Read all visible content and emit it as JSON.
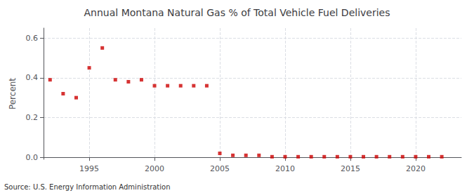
{
  "chart_data": {
    "type": "scatter",
    "title": "Annual Montana Natural Gas % of Total Vehicle Fuel Deliveries",
    "ylabel": "Percent",
    "source": "Source: U.S. Energy Information Administration",
    "x": [
      1992,
      1993,
      1994,
      1995,
      1996,
      1997,
      1998,
      1999,
      2000,
      2001,
      2002,
      2003,
      2004,
      2005,
      2006,
      2007,
      2008,
      2009,
      2010,
      2011,
      2012,
      2013,
      2014,
      2015,
      2016,
      2017,
      2018,
      2019,
      2020,
      2021,
      2022
    ],
    "values": [
      0.39,
      0.32,
      0.3,
      0.45,
      0.55,
      0.39,
      0.38,
      0.39,
      0.36,
      0.36,
      0.36,
      0.36,
      0.36,
      0.02,
      0.01,
      0.01,
      0.01,
      0.003,
      0.003,
      0.003,
      0.003,
      0.003,
      0.003,
      0.003,
      0.003,
      0.003,
      0.003,
      0.003,
      0.003,
      0.003,
      0.003
    ],
    "color": "#cc0000",
    "marker": "square",
    "xlim": [
      1991.5,
      2023.5
    ],
    "xticks": [
      1995,
      2000,
      2005,
      2010,
      2015,
      2020
    ],
    "ylim": [
      -0.01,
      0.65
    ],
    "yticks": [
      {
        "value": 0,
        "label": "0.0"
      },
      0.2,
      0.4,
      0.6
    ],
    "grid": true
  }
}
